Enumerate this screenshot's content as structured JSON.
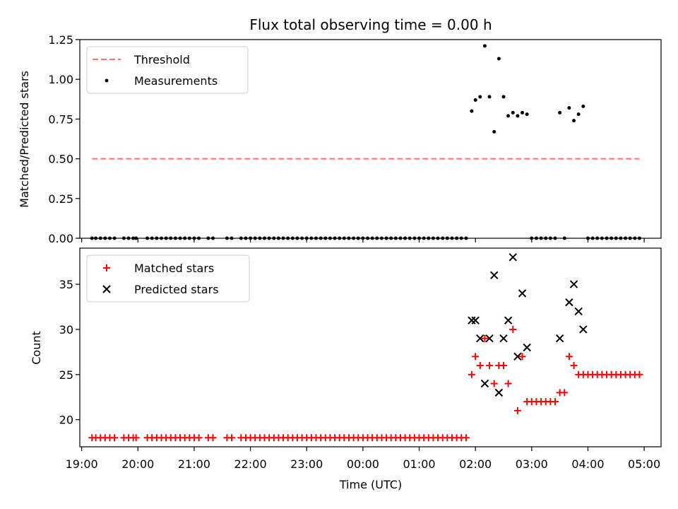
{
  "title": "Flux total observing time = 0.00 h",
  "colors": {
    "threshold": "#ff7070",
    "measurement": "#000000",
    "matched": "#ff0000",
    "predicted": "#000000"
  },
  "chart_data": [
    {
      "type": "scatter",
      "ylabel": "Matched/Predicted stars",
      "xlim": [
        "18:58",
        "05:18"
      ],
      "ylim": [
        0,
        1.25
      ],
      "yticks": [
        "0.00",
        "0.25",
        "0.50",
        "0.75",
        "1.00",
        "1.25"
      ],
      "ytick_values": [
        0,
        0.25,
        0.5,
        0.75,
        1.0,
        1.25
      ],
      "legend_position": "upper-left",
      "threshold": {
        "name": "Threshold",
        "value": 0.5,
        "x_range": [
          "19:11",
          "04:55"
        ]
      },
      "series": [
        {
          "name": "Measurements",
          "points": [
            [
              "19:11",
              0
            ],
            [
              "19:15",
              0
            ],
            [
              "19:20",
              0
            ],
            [
              "19:25",
              0
            ],
            [
              "19:30",
              0
            ],
            [
              "19:35",
              0
            ],
            [
              "19:45",
              0
            ],
            [
              "19:50",
              0
            ],
            [
              "19:55",
              0
            ],
            [
              "19:58",
              0
            ],
            [
              "20:10",
              0
            ],
            [
              "20:15",
              0
            ],
            [
              "20:20",
              0
            ],
            [
              "20:25",
              0
            ],
            [
              "20:30",
              0
            ],
            [
              "20:35",
              0
            ],
            [
              "20:40",
              0
            ],
            [
              "20:45",
              0
            ],
            [
              "20:50",
              0
            ],
            [
              "20:55",
              0
            ],
            [
              "21:00",
              0
            ],
            [
              "21:05",
              0
            ],
            [
              "21:15",
              0
            ],
            [
              "21:20",
              0
            ],
            [
              "21:35",
              0
            ],
            [
              "21:40",
              0
            ],
            [
              "21:50",
              0
            ],
            [
              "21:55",
              0
            ],
            [
              "22:00",
              0
            ],
            [
              "22:05",
              0
            ],
            [
              "22:10",
              0
            ],
            [
              "22:15",
              0
            ],
            [
              "22:20",
              0
            ],
            [
              "22:25",
              0
            ],
            [
              "22:30",
              0
            ],
            [
              "22:35",
              0
            ],
            [
              "22:40",
              0
            ],
            [
              "22:45",
              0
            ],
            [
              "22:50",
              0
            ],
            [
              "22:55",
              0
            ],
            [
              "23:00",
              0
            ],
            [
              "23:05",
              0
            ],
            [
              "23:10",
              0
            ],
            [
              "23:15",
              0
            ],
            [
              "23:20",
              0
            ],
            [
              "23:25",
              0
            ],
            [
              "23:30",
              0
            ],
            [
              "23:35",
              0
            ],
            [
              "23:40",
              0
            ],
            [
              "23:45",
              0
            ],
            [
              "23:50",
              0
            ],
            [
              "23:55",
              0
            ],
            [
              "00:00",
              0
            ],
            [
              "00:05",
              0
            ],
            [
              "00:10",
              0
            ],
            [
              "00:15",
              0
            ],
            [
              "00:20",
              0
            ],
            [
              "00:25",
              0
            ],
            [
              "00:30",
              0
            ],
            [
              "00:35",
              0
            ],
            [
              "00:40",
              0
            ],
            [
              "00:45",
              0
            ],
            [
              "00:50",
              0
            ],
            [
              "00:55",
              0
            ],
            [
              "01:00",
              0
            ],
            [
              "01:05",
              0
            ],
            [
              "01:10",
              0
            ],
            [
              "01:15",
              0
            ],
            [
              "01:20",
              0
            ],
            [
              "01:25",
              0
            ],
            [
              "01:30",
              0
            ],
            [
              "01:35",
              0
            ],
            [
              "01:40",
              0
            ],
            [
              "01:45",
              0
            ],
            [
              "01:50",
              0
            ],
            [
              "01:56",
              0.8
            ],
            [
              "02:00",
              0.87
            ],
            [
              "02:05",
              0.89
            ],
            [
              "02:10",
              1.21
            ],
            [
              "02:15",
              0.89
            ],
            [
              "02:20",
              0.67
            ],
            [
              "02:25",
              1.13
            ],
            [
              "02:30",
              0.89
            ],
            [
              "02:35",
              0.77
            ],
            [
              "02:40",
              0.79
            ],
            [
              "02:45",
              0.77
            ],
            [
              "02:50",
              0.79
            ],
            [
              "02:55",
              0.78
            ],
            [
              "03:00",
              0
            ],
            [
              "03:05",
              0
            ],
            [
              "03:10",
              0
            ],
            [
              "03:15",
              0
            ],
            [
              "03:20",
              0
            ],
            [
              "03:25",
              0
            ],
            [
              "03:35",
              0
            ],
            [
              "03:30",
              0.79
            ],
            [
              "03:40",
              0.82
            ],
            [
              "03:45",
              0.74
            ],
            [
              "03:50",
              0.78
            ],
            [
              "03:55",
              0.83
            ],
            [
              "04:00",
              0
            ],
            [
              "04:05",
              0
            ],
            [
              "04:10",
              0
            ],
            [
              "04:15",
              0
            ],
            [
              "04:20",
              0
            ],
            [
              "04:25",
              0
            ],
            [
              "04:30",
              0
            ],
            [
              "04:35",
              0
            ],
            [
              "04:40",
              0
            ],
            [
              "04:45",
              0
            ],
            [
              "04:50",
              0
            ],
            [
              "04:55",
              0
            ]
          ]
        }
      ]
    },
    {
      "type": "scatter",
      "xlabel": "Time (UTC)",
      "ylabel": "Count",
      "xlim": [
        "18:58",
        "05:18"
      ],
      "ylim": [
        17,
        39
      ],
      "xticks": [
        "19:00",
        "20:00",
        "21:00",
        "22:00",
        "23:00",
        "00:00",
        "01:00",
        "02:00",
        "03:00",
        "04:00",
        "05:00"
      ],
      "yticks": [
        "20",
        "25",
        "30",
        "35"
      ],
      "ytick_values": [
        20,
        25,
        30,
        35
      ],
      "legend_position": "upper-left",
      "series": [
        {
          "name": "Matched stars",
          "points": [
            [
              "19:11",
              18
            ],
            [
              "19:15",
              18
            ],
            [
              "19:20",
              18
            ],
            [
              "19:25",
              18
            ],
            [
              "19:30",
              18
            ],
            [
              "19:35",
              18
            ],
            [
              "19:45",
              18
            ],
            [
              "19:50",
              18
            ],
            [
              "19:55",
              18
            ],
            [
              "19:58",
              18
            ],
            [
              "20:10",
              18
            ],
            [
              "20:15",
              18
            ],
            [
              "20:20",
              18
            ],
            [
              "20:25",
              18
            ],
            [
              "20:30",
              18
            ],
            [
              "20:35",
              18
            ],
            [
              "20:40",
              18
            ],
            [
              "20:45",
              18
            ],
            [
              "20:50",
              18
            ],
            [
              "20:55",
              18
            ],
            [
              "21:00",
              18
            ],
            [
              "21:05",
              18
            ],
            [
              "21:15",
              18
            ],
            [
              "21:20",
              18
            ],
            [
              "21:35",
              18
            ],
            [
              "21:40",
              18
            ],
            [
              "21:50",
              18
            ],
            [
              "21:55",
              18
            ],
            [
              "22:00",
              18
            ],
            [
              "22:05",
              18
            ],
            [
              "22:10",
              18
            ],
            [
              "22:15",
              18
            ],
            [
              "22:20",
              18
            ],
            [
              "22:25",
              18
            ],
            [
              "22:30",
              18
            ],
            [
              "22:35",
              18
            ],
            [
              "22:40",
              18
            ],
            [
              "22:45",
              18
            ],
            [
              "22:50",
              18
            ],
            [
              "22:55",
              18
            ],
            [
              "23:00",
              18
            ],
            [
              "23:05",
              18
            ],
            [
              "23:10",
              18
            ],
            [
              "23:15",
              18
            ],
            [
              "23:20",
              18
            ],
            [
              "23:25",
              18
            ],
            [
              "23:30",
              18
            ],
            [
              "23:35",
              18
            ],
            [
              "23:40",
              18
            ],
            [
              "23:45",
              18
            ],
            [
              "23:50",
              18
            ],
            [
              "23:55",
              18
            ],
            [
              "00:00",
              18
            ],
            [
              "00:05",
              18
            ],
            [
              "00:10",
              18
            ],
            [
              "00:15",
              18
            ],
            [
              "00:20",
              18
            ],
            [
              "00:25",
              18
            ],
            [
              "00:30",
              18
            ],
            [
              "00:35",
              18
            ],
            [
              "00:40",
              18
            ],
            [
              "00:45",
              18
            ],
            [
              "00:50",
              18
            ],
            [
              "00:55",
              18
            ],
            [
              "01:00",
              18
            ],
            [
              "01:05",
              18
            ],
            [
              "01:10",
              18
            ],
            [
              "01:15",
              18
            ],
            [
              "01:20",
              18
            ],
            [
              "01:25",
              18
            ],
            [
              "01:30",
              18
            ],
            [
              "01:35",
              18
            ],
            [
              "01:40",
              18
            ],
            [
              "01:45",
              18
            ],
            [
              "01:50",
              18
            ],
            [
              "01:56",
              25
            ],
            [
              "02:00",
              27
            ],
            [
              "02:05",
              26
            ],
            [
              "02:10",
              29
            ],
            [
              "02:15",
              26
            ],
            [
              "02:20",
              24
            ],
            [
              "02:25",
              26
            ],
            [
              "02:30",
              26
            ],
            [
              "02:35",
              24
            ],
            [
              "02:40",
              30
            ],
            [
              "02:45",
              21
            ],
            [
              "02:50",
              27
            ],
            [
              "02:55",
              22
            ],
            [
              "03:00",
              22
            ],
            [
              "03:05",
              22
            ],
            [
              "03:10",
              22
            ],
            [
              "03:15",
              22
            ],
            [
              "03:20",
              22
            ],
            [
              "03:25",
              22
            ],
            [
              "03:30",
              23
            ],
            [
              "03:35",
              23
            ],
            [
              "03:40",
              27
            ],
            [
              "03:45",
              26
            ],
            [
              "03:50",
              25
            ],
            [
              "03:55",
              25
            ],
            [
              "04:00",
              25
            ],
            [
              "04:05",
              25
            ],
            [
              "04:10",
              25
            ],
            [
              "04:15",
              25
            ],
            [
              "04:20",
              25
            ],
            [
              "04:25",
              25
            ],
            [
              "04:30",
              25
            ],
            [
              "04:35",
              25
            ],
            [
              "04:40",
              25
            ],
            [
              "04:45",
              25
            ],
            [
              "04:50",
              25
            ],
            [
              "04:55",
              25
            ]
          ]
        },
        {
          "name": "Predicted stars",
          "points": [
            [
              "01:56",
              31
            ],
            [
              "02:00",
              31
            ],
            [
              "02:05",
              29
            ],
            [
              "02:10",
              24
            ],
            [
              "02:15",
              29
            ],
            [
              "02:20",
              36
            ],
            [
              "02:25",
              23
            ],
            [
              "02:30",
              29
            ],
            [
              "02:35",
              31
            ],
            [
              "02:40",
              38
            ],
            [
              "02:45",
              27
            ],
            [
              "02:50",
              34
            ],
            [
              "02:55",
              28
            ],
            [
              "03:30",
              29
            ],
            [
              "03:40",
              33
            ],
            [
              "03:45",
              35
            ],
            [
              "03:50",
              32
            ],
            [
              "03:55",
              30
            ]
          ]
        }
      ]
    }
  ]
}
